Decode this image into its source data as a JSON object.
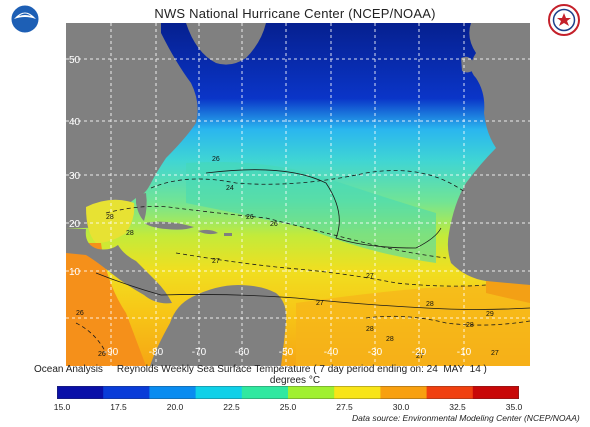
{
  "header": {
    "title": "NWS National Hurricane Center (NCEP/NOAA)"
  },
  "map": {
    "lat_labels": [
      "50",
      "40",
      "30",
      "20",
      "10"
    ],
    "lon_labels": [
      "-90",
      "-80",
      "-70",
      "-60",
      "-50",
      "-40",
      "-30",
      "-20",
      "-10"
    ],
    "contour_labels": [
      "26",
      "24",
      "26",
      "28",
      "26",
      "28",
      "27",
      "27",
      "26",
      "27",
      "28",
      "29",
      "28",
      "28",
      "27",
      "26",
      "28",
      "27"
    ],
    "colors": {
      "land": "#808080",
      "ocean_coldest": "#06208f",
      "ocean_warm": "#f7d11b",
      "ocean_hottest": "#f47f10"
    }
  },
  "caption": {
    "left": "Ocean Analysis",
    "right": "Reynolds Weekly Sea Surface Temperature ( 7 day period ending on: 24  MAY  14 )"
  },
  "units": "degrees °C",
  "colorbar": {
    "ticks": [
      "15.0",
      "17.5",
      "20.0",
      "22.5",
      "25.0",
      "27.5",
      "30.0",
      "32.5",
      "35.0"
    ],
    "colors": [
      "#0a10a8",
      "#0a3cd8",
      "#0a8cf0",
      "#10d0e8",
      "#30e8a0",
      "#a0f030",
      "#f8e418",
      "#f8a010",
      "#f04010",
      "#c80808"
    ]
  },
  "source": "Data source: Environmental Modeling Center (NCEP/NOAA)"
}
